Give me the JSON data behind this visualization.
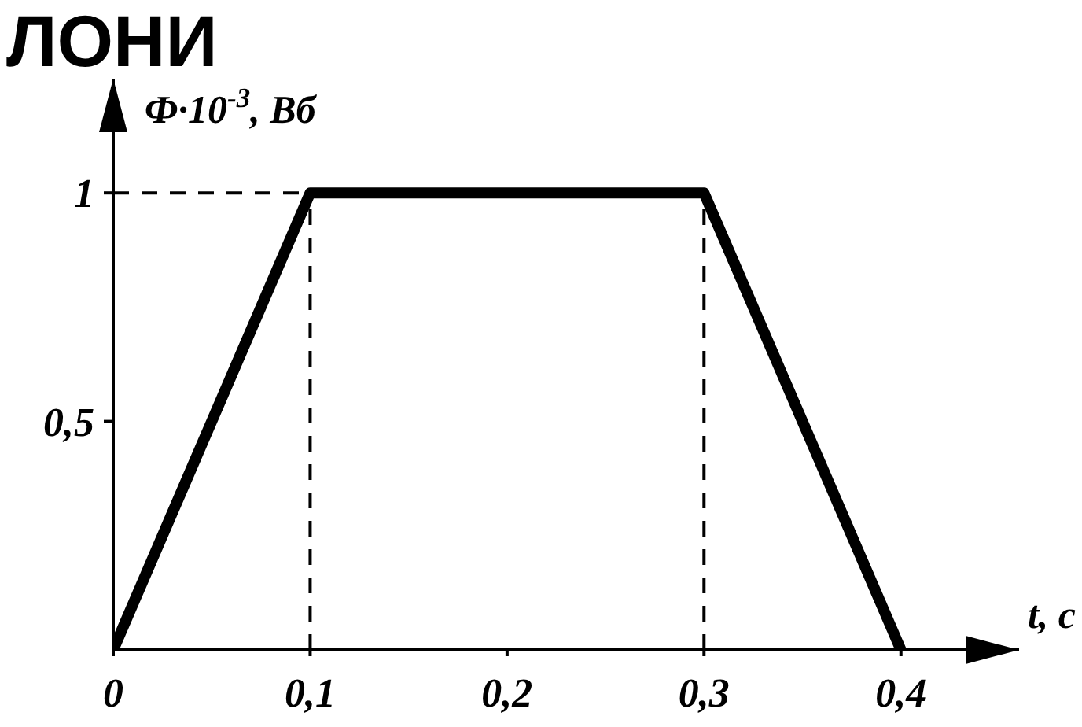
{
  "chart_data": {
    "type": "line",
    "title": "ЛОНИ",
    "xlabel": "t, c",
    "ylabel": "Ф·10$^{-3}$, Вб",
    "x": [
      0,
      0.1,
      0.3,
      0.4
    ],
    "series": [
      {
        "color": "#000000",
        "values": [
          0,
          1,
          1,
          0
        ]
      }
    ],
    "xlim": [
      0,
      0.46
    ],
    "ylim": [
      0,
      1.25
    ],
    "xticks": [
      0,
      {
        "value": 0.1,
        "label": "0,1"
      },
      {
        "value": 0.2,
        "label": "0,2"
      },
      {
        "value": 0.3,
        "label": "0,3"
      },
      {
        "value": 0.4,
        "label": "0,4"
      }
    ],
    "yticks": [
      {
        "value": 0.5,
        "label": "0,5"
      },
      1
    ],
    "ref_lines": [
      {
        "axis": "y",
        "value": 1,
        "color": "#000000",
        "line_style": "dashed"
      },
      {
        "axis": "x",
        "value": 0.1,
        "color": "#000000",
        "line_style": "dashed"
      },
      {
        "axis": "x",
        "value": 0.3,
        "color": "#000000",
        "line_style": "dashed"
      }
    ],
    "marker": "none",
    "line_style": "solid"
  }
}
